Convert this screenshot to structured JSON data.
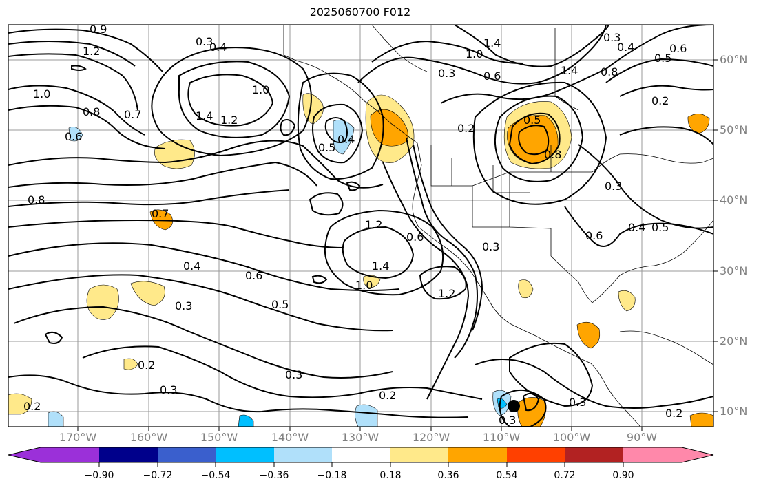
{
  "title": "2025060700 F012",
  "latitude_labels": [
    "60°N",
    "50°N",
    "40°N",
    "30°N",
    "20°N",
    "10°N"
  ],
  "longitude_labels": [
    "170°W",
    "160°W",
    "150°W",
    "140°W",
    "130°W",
    "120°W",
    "110°W",
    "100°W",
    "90°W"
  ],
  "contour_labels": [
    "0.9",
    "1.2",
    "1.0",
    "0.8",
    "0.7",
    "0.6",
    "0.3",
    "0.4",
    "1.4",
    "1.2",
    "1.0",
    "0.5",
    "0.4",
    "0.8",
    "0.7",
    "1.2",
    "0.6",
    "1.4",
    "1.0",
    "1.2",
    "0.3",
    "0.4",
    "0.6",
    "0.5",
    "0.3",
    "0.2",
    "0.3",
    "0.3",
    "0.2",
    "0.2",
    "0.3",
    "0.3",
    "1.0",
    "1.4",
    "0.3",
    "0.6",
    "0.2",
    "0.5",
    "0.8",
    "1.4",
    "0.8",
    "0.3",
    "0.4",
    "0.5",
    "0.6",
    "0.2",
    "0.3",
    "0.4",
    "0.6",
    "0.5",
    "0.2"
  ],
  "colorbar": {
    "ticks": [
      "−0.90",
      "−0.72",
      "−0.54",
      "−0.36",
      "−0.18",
      "0.18",
      "0.36",
      "0.54",
      "0.72",
      "0.90"
    ],
    "colors": [
      "#9b30d9",
      "#00008b",
      "#3a5fcd",
      "#00bfff",
      "#b0e0fa",
      "#ffffff",
      "#ffe98a",
      "#ffa500",
      "#ff4000",
      "#b22222",
      "#ff88aa"
    ]
  },
  "shading_colors": {
    "light_yellow": "#ffe98a",
    "orange": "#ffa500",
    "light_blue": "#b0e0fa",
    "blue": "#00bfff"
  }
}
